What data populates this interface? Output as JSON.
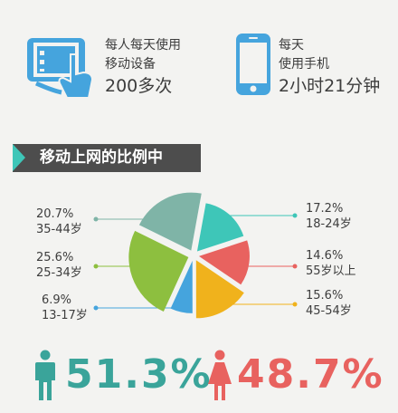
{
  "stats": {
    "devices": {
      "line1": "每人每天使用",
      "line2": "移动设备",
      "line3": "200多次"
    },
    "phone": {
      "line1": "每天",
      "line2": "使用手机",
      "line3": "2小时21分钟"
    }
  },
  "section_title": "移动上网的比例中",
  "chart_data": {
    "type": "pie",
    "slices": [
      {
        "label": "18-24岁",
        "value": 17.2,
        "value_text": "17.2%",
        "color": "#3ec6b8"
      },
      {
        "label": "55岁以上",
        "value": 14.6,
        "value_text": "14.6%",
        "color": "#e8625f"
      },
      {
        "label": "45-54岁",
        "value": 15.6,
        "value_text": "15.6%",
        "color": "#f0b21c"
      },
      {
        "label": "13-17岁",
        "value": 6.9,
        "value_text": "6.9%",
        "color": "#45a4dd"
      },
      {
        "label": "25-34岁",
        "value": 25.6,
        "value_text": "25.6%",
        "color": "#8dbf3f"
      },
      {
        "label": "35-44岁",
        "value": 20.7,
        "value_text": "20.7%",
        "color": "#7fb4a7"
      }
    ]
  },
  "gender": {
    "male": {
      "value": "51.3%",
      "color": "#3aa49a"
    },
    "female": {
      "value": "48.7%",
      "color": "#e8625f"
    }
  },
  "colors": {
    "icon_blue": "#45a4dd",
    "dark": "#3d3d3d"
  }
}
